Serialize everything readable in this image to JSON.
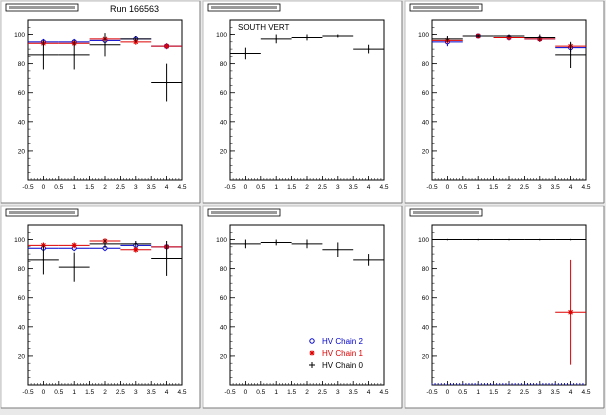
{
  "run_label": "Run 166563",
  "chart_data": [
    {
      "type": "scatter",
      "title": "",
      "xlabel": "",
      "ylabel": "",
      "xlim": [
        -0.5,
        4.5
      ],
      "ylim": [
        0,
        110
      ],
      "xticks": [
        "-0.5",
        "0",
        "0.5",
        "1",
        "1.5",
        "2",
        "2.5",
        "3",
        "3.5",
        "4",
        "4.5"
      ],
      "yticks": [
        "20",
        "40",
        "60",
        "80",
        "100"
      ],
      "series": [
        {
          "color": "#0000cc",
          "x": [
            0,
            1,
            2,
            3,
            4
          ],
          "y": [
            95,
            95,
            96,
            97,
            92
          ],
          "yerr": [
            2,
            2,
            2,
            2,
            2
          ]
        },
        {
          "color": "#dd0000",
          "x": [
            0,
            1,
            2,
            3,
            4
          ],
          "y": [
            94,
            94,
            97,
            95,
            92
          ],
          "yerr": [
            2,
            2,
            2,
            2,
            2
          ]
        },
        {
          "color": "#000000",
          "x": [
            0,
            1,
            2,
            3,
            4
          ],
          "y": [
            86,
            86,
            93,
            97,
            67
          ],
          "yerr": [
            10,
            10,
            8,
            2,
            13
          ]
        }
      ]
    },
    {
      "type": "scatter",
      "title": "",
      "xlabel": "",
      "ylabel": "",
      "annotation": "SOUTH VERT",
      "xlim": [
        -0.5,
        4.5
      ],
      "ylim": [
        0,
        110
      ],
      "xticks": [
        "-0.5",
        "0",
        "0.5",
        "1",
        "1.5",
        "2",
        "2.5",
        "3",
        "3.5",
        "4",
        "4.5"
      ],
      "yticks": [
        "20",
        "40",
        "60",
        "80",
        "100"
      ],
      "series": [
        {
          "color": "#000000",
          "x": [
            0,
            1,
            2,
            3,
            4
          ],
          "y": [
            87,
            97,
            98,
            99,
            90
          ],
          "yerr": [
            4,
            3,
            2,
            1,
            3
          ]
        }
      ]
    },
    {
      "type": "scatter",
      "title": "",
      "xlabel": "",
      "ylabel": "",
      "xlim": [
        -0.5,
        4.5
      ],
      "ylim": [
        0,
        110
      ],
      "xticks": [
        "-0.5",
        "0",
        "0.5",
        "1",
        "1.5",
        "2",
        "2.5",
        "3",
        "3.5",
        "4",
        "4.5"
      ],
      "yticks": [
        "20",
        "40",
        "60",
        "80",
        "100"
      ],
      "series": [
        {
          "color": "#0000cc",
          "x": [
            0,
            1,
            2,
            3,
            4
          ],
          "y": [
            95,
            99,
            98,
            97,
            91
          ],
          "yerr": [
            3,
            1,
            2,
            2,
            3
          ]
        },
        {
          "color": "#dd0000",
          "x": [
            0,
            1,
            2,
            3,
            4
          ],
          "y": [
            96,
            99,
            98,
            97,
            92
          ],
          "yerr": [
            2,
            1,
            2,
            2,
            2
          ]
        },
        {
          "color": "#000000",
          "x": [
            0,
            1,
            2,
            3,
            4
          ],
          "y": [
            97,
            99,
            99,
            98,
            86
          ],
          "yerr": [
            2,
            1,
            1,
            2,
            9
          ]
        }
      ]
    },
    {
      "type": "scatter",
      "title": "",
      "xlabel": "",
      "ylabel": "",
      "xlim": [
        -0.5,
        4.5
      ],
      "ylim": [
        0,
        110
      ],
      "xticks": [
        "-0.5",
        "0",
        "0.5",
        "1",
        "1.5",
        "2",
        "2.5",
        "3",
        "3.5",
        "4",
        "4.5"
      ],
      "yticks": [
        "20",
        "40",
        "60",
        "80",
        "100"
      ],
      "series": [
        {
          "color": "#0000cc",
          "x": [
            0,
            1,
            2,
            3,
            4
          ],
          "y": [
            94,
            94,
            94,
            96,
            95
          ],
          "yerr": [
            2,
            2,
            2,
            2,
            2
          ]
        },
        {
          "color": "#dd0000",
          "x": [
            0,
            1,
            2,
            3,
            4
          ],
          "y": [
            96,
            96,
            99,
            93,
            95
          ],
          "yerr": [
            2,
            2,
            2,
            2,
            2
          ]
        },
        {
          "color": "#000000",
          "x": [
            0,
            1,
            2,
            3,
            4
          ],
          "y": [
            86,
            81,
            97,
            97,
            87
          ],
          "yerr": [
            10,
            10,
            3,
            2,
            12
          ]
        }
      ]
    },
    {
      "type": "scatter",
      "title": "",
      "xlabel": "",
      "ylabel": "",
      "xlim": [
        -0.5,
        4.5
      ],
      "ylim": [
        0,
        110
      ],
      "xticks": [
        "-0.5",
        "0",
        "0.5",
        "1",
        "1.5",
        "2",
        "2.5",
        "3",
        "3.5",
        "4",
        "4.5"
      ],
      "yticks": [
        "20",
        "40",
        "60",
        "80",
        "100"
      ],
      "legend": {
        "placement": "bottom-right",
        "entries": [
          {
            "label": "HV Chain 2",
            "color": "#0000cc",
            "marker": "circle"
          },
          {
            "label": "HV Chain 1",
            "color": "#dd0000",
            "marker": "star"
          },
          {
            "label": "HV Chain 0",
            "color": "#000000",
            "marker": "cross"
          }
        ]
      },
      "series": [
        {
          "color": "#000000",
          "x": [
            0,
            1,
            2,
            3,
            4
          ],
          "y": [
            97,
            98,
            97,
            93,
            86
          ],
          "yerr": [
            3,
            2,
            3,
            5,
            4
          ]
        }
      ]
    },
    {
      "type": "scatter",
      "title": "",
      "xlabel": "",
      "ylabel": "",
      "xlim": [
        -0.5,
        4.5
      ],
      "ylim": [
        0,
        110
      ],
      "xticks": [
        "-0.5",
        "0",
        "0.5",
        "1",
        "1.5",
        "2",
        "2.5",
        "3",
        "3.5",
        "4",
        "4.5"
      ],
      "yticks": [
        "20",
        "40",
        "60",
        "80",
        "100"
      ],
      "series": [
        {
          "color": "#0000cc",
          "x": [
            -0.5,
            -0.4,
            -0.3,
            -0.2,
            -0.1,
            0,
            0.1,
            0.2,
            0.3,
            0.4,
            0.5,
            0.6,
            0.7,
            0.8,
            0.9,
            1,
            1.1,
            1.2,
            1.3,
            1.4,
            1.5,
            1.6,
            1.7,
            1.8,
            1.9,
            2,
            2.1,
            2.2,
            2.3,
            2.4,
            2.5,
            2.6,
            2.7,
            2.8,
            2.9,
            3,
            3.1,
            3.2,
            3.3,
            3.4,
            3.5,
            3.6,
            3.7,
            3.8,
            3.9,
            4,
            4.1,
            4.2,
            4.3,
            4.4
          ],
          "y": [
            0,
            0,
            0,
            0,
            0,
            0,
            0,
            0,
            0,
            0,
            0,
            0,
            0,
            0,
            0,
            0,
            0,
            0,
            0,
            0,
            0,
            0,
            0,
            0,
            0,
            0,
            0,
            0,
            0,
            0,
            0,
            0,
            0,
            0,
            0,
            0,
            0,
            0,
            0,
            0,
            0,
            0,
            0,
            0,
            0,
            0,
            0,
            0,
            0,
            0
          ],
          "yerr": [],
          "marker": "tick"
        },
        {
          "color": "#000000",
          "x": [
            0,
            1,
            2,
            3,
            4
          ],
          "y": [
            100,
            100,
            100,
            100,
            100
          ],
          "yerr": [
            0,
            0,
            0,
            0,
            0
          ]
        },
        {
          "color": "#dd0000",
          "x": [
            4
          ],
          "y": [
            50
          ],
          "yerr": [
            36
          ]
        }
      ]
    }
  ]
}
